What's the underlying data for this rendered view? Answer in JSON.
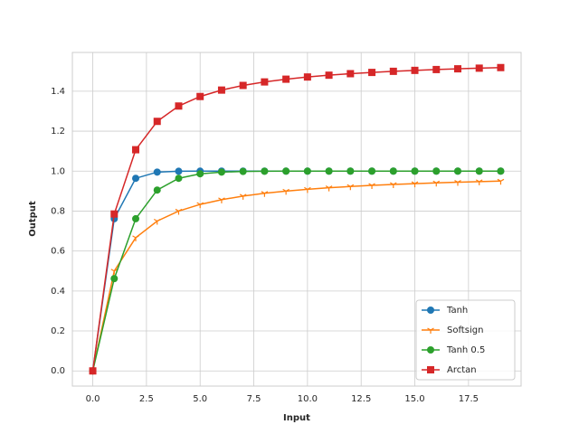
{
  "chart_data": {
    "type": "line",
    "x_label": "Input",
    "y_label": "Output",
    "x": [
      0,
      1,
      2,
      3,
      4,
      5,
      6,
      7,
      8,
      9,
      10,
      11,
      12,
      13,
      14,
      15,
      16,
      17,
      18,
      19
    ],
    "series": [
      {
        "name": "Tanh",
        "color": "#1f77b4",
        "marker": "circle",
        "values": [
          0,
          0.7616,
          0.964,
          0.9951,
          0.9993,
          0.9999,
          1,
          1,
          1,
          1,
          1,
          1,
          1,
          1,
          1,
          1,
          1,
          1,
          1,
          1
        ]
      },
      {
        "name": "Softsign",
        "color": "#ff7f0e",
        "marker": "tri_down",
        "values": [
          0,
          0.5,
          0.6667,
          0.75,
          0.8,
          0.8333,
          0.8571,
          0.875,
          0.8889,
          0.9,
          0.9091,
          0.9167,
          0.9231,
          0.9286,
          0.9333,
          0.9375,
          0.9412,
          0.9444,
          0.9474,
          0.95
        ]
      },
      {
        "name": "Tanh 0.5",
        "color": "#2ca02c",
        "marker": "circle",
        "values": [
          0,
          0.4621,
          0.7616,
          0.9051,
          0.964,
          0.9866,
          0.9951,
          0.9982,
          0.9993,
          0.9998,
          0.9999,
          1,
          1,
          1,
          1,
          1,
          1,
          1,
          1,
          1
        ]
      },
      {
        "name": "Arctan",
        "color": "#d62728",
        "marker": "square",
        "values": [
          0,
          0.7854,
          1.1071,
          1.249,
          1.3258,
          1.3734,
          1.4056,
          1.4289,
          1.4464,
          1.4601,
          1.4711,
          1.4801,
          1.4877,
          1.494,
          1.4995,
          1.5042,
          1.5084,
          1.5121,
          1.5153,
          1.5182
        ]
      }
    ],
    "xlim": [
      -0.95,
      19.95
    ],
    "ylim": [
      -0.0759,
      1.594
    ],
    "xticks": [
      {
        "value": 0,
        "label": "0.0"
      },
      {
        "value": 2.5,
        "label": "2.5"
      },
      {
        "value": 5,
        "label": "5.0"
      },
      {
        "value": 7.5,
        "label": "7.5"
      },
      {
        "value": 10,
        "label": "10.0"
      },
      {
        "value": 12.5,
        "label": "12.5"
      },
      {
        "value": 15,
        "label": "15.0"
      },
      {
        "value": 17.5,
        "label": "17.5"
      }
    ],
    "yticks": [
      {
        "value": 0,
        "label": "0.0"
      },
      {
        "value": 0.2,
        "label": "0.2"
      },
      {
        "value": 0.4,
        "label": "0.4"
      },
      {
        "value": 0.6,
        "label": "0.6"
      },
      {
        "value": 0.8,
        "label": "0.8"
      },
      {
        "value": 1,
        "label": "1.0"
      },
      {
        "value": 1.2,
        "label": "1.2"
      },
      {
        "value": 1.4,
        "label": "1.4"
      }
    ],
    "grid": true,
    "legend": "lower right"
  }
}
